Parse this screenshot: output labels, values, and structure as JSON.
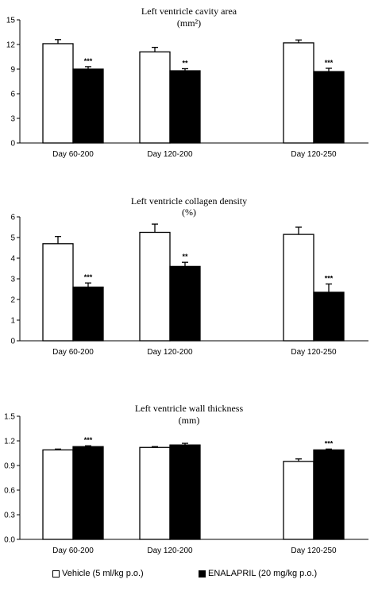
{
  "chart_data": [
    {
      "type": "bar",
      "title": "Left ventricle cavity area",
      "subtitle": "(mm²)",
      "categories": [
        "Day 60-200",
        "Day 120-200",
        "Day 120-250"
      ],
      "ylim": [
        0,
        15
      ],
      "yticks": [
        "0",
        "3",
        "6",
        "9",
        "12",
        "15"
      ],
      "series": [
        {
          "name": "Vehicle (5 ml/kg p.o.)",
          "color": "#ffffff",
          "values": [
            12.1,
            11.1,
            12.2
          ],
          "errors": [
            0.5,
            0.55,
            0.35
          ]
        },
        {
          "name": "ENALAPRIL (20 mg/kg p.o.)",
          "color": "#000000",
          "values": [
            9.0,
            8.8,
            8.7
          ],
          "errors": [
            0.3,
            0.25,
            0.4
          ]
        }
      ],
      "significance": [
        "***",
        "**",
        "***"
      ]
    },
    {
      "type": "bar",
      "title": "Left ventricle collagen density",
      "subtitle": "(%)",
      "categories": [
        "Day 60-200",
        "Day 120-200",
        "Day 120-250"
      ],
      "ylim": [
        0,
        6
      ],
      "yticks": [
        "0",
        "1",
        "2",
        "3",
        "4",
        "5",
        "6"
      ],
      "series": [
        {
          "name": "Vehicle (5 ml/kg p.o.)",
          "color": "#ffffff",
          "values": [
            4.7,
            5.25,
            5.15
          ],
          "errors": [
            0.35,
            0.4,
            0.35
          ]
        },
        {
          "name": "ENALAPRIL (20 mg/kg p.o.)",
          "color": "#000000",
          "values": [
            2.6,
            3.6,
            2.35
          ],
          "errors": [
            0.2,
            0.2,
            0.4
          ]
        }
      ],
      "significance": [
        "***",
        "**",
        "***"
      ]
    },
    {
      "type": "bar",
      "title": "Left ventricle wall thickness",
      "subtitle": "(mm)",
      "categories": [
        "Day 60-200",
        "Day 120-200",
        "Day 120-250"
      ],
      "ylim": [
        0,
        1.5
      ],
      "yticks": [
        "0.0",
        "0.3",
        "0.6",
        "0.9",
        "1.2",
        "1.5"
      ],
      "series": [
        {
          "name": "Vehicle (5 ml/kg p.o.)",
          "color": "#ffffff",
          "values": [
            1.09,
            1.12,
            0.95
          ],
          "errors": [
            0.01,
            0.01,
            0.03
          ]
        },
        {
          "name": "ENALAPRIL (20 mg/kg p.o.)",
          "color": "#000000",
          "values": [
            1.13,
            1.15,
            1.09
          ],
          "errors": [
            0.01,
            0.02,
            0.01
          ]
        }
      ],
      "significance": [
        "***",
        "",
        "***"
      ]
    }
  ],
  "legend": {
    "vehicle_label": "Vehicle (5 ml/kg p.o.)",
    "enalapril_label": "ENALAPRIL (20 mg/kg p.o.)",
    "vehicle_color": "#ffffff",
    "enalapril_color": "#000000"
  }
}
